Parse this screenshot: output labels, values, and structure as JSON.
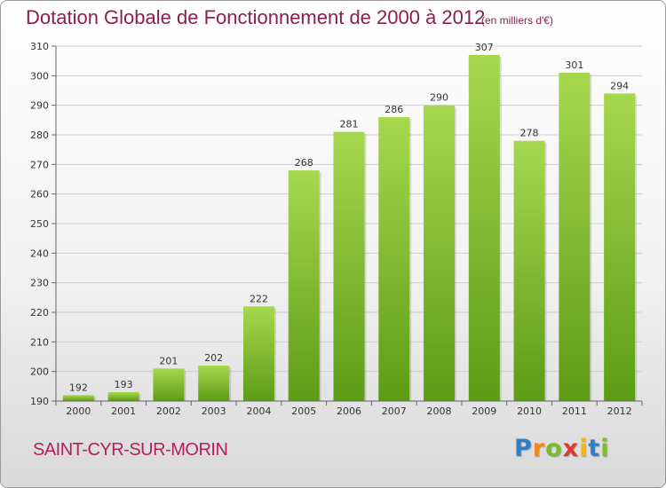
{
  "title": "Dotation Globale de Fonctionnement de 2000 à 2012",
  "subtitle": "(en milliers d'€)",
  "commune": "SAINT-CYR-SUR-MORIN",
  "logo": {
    "text": "Proxiti",
    "letters": [
      {
        "ch": "P",
        "color": "#2f7fc6"
      },
      {
        "ch": "r",
        "color": "#f08a1c"
      },
      {
        "ch": "o",
        "color": "#7cba2e"
      },
      {
        "ch": "x",
        "color": "#e23a2a"
      },
      {
        "ch": "i",
        "color": "#f0b81c"
      },
      {
        "ch": "t",
        "color": "#2f7fc6"
      },
      {
        "ch": "i",
        "color": "#7cba2e"
      }
    ]
  },
  "colors": {
    "bar_light": "#a6d84e",
    "bar_dark": "#5d9c16",
    "title": "#8a1f4f",
    "commune": "#b5205c"
  },
  "chart_data": {
    "type": "bar",
    "categories": [
      "2000",
      "2001",
      "2002",
      "2003",
      "2004",
      "2005",
      "2006",
      "2007",
      "2008",
      "2009",
      "2010",
      "2011",
      "2012"
    ],
    "values": [
      192,
      193,
      201,
      202,
      222,
      268,
      281,
      286,
      290,
      307,
      278,
      301,
      294
    ],
    "ylim": [
      190,
      310
    ],
    "yticks": [
      190,
      200,
      210,
      220,
      230,
      240,
      250,
      260,
      270,
      280,
      290,
      300,
      310
    ],
    "grid": true,
    "legend": "none"
  }
}
